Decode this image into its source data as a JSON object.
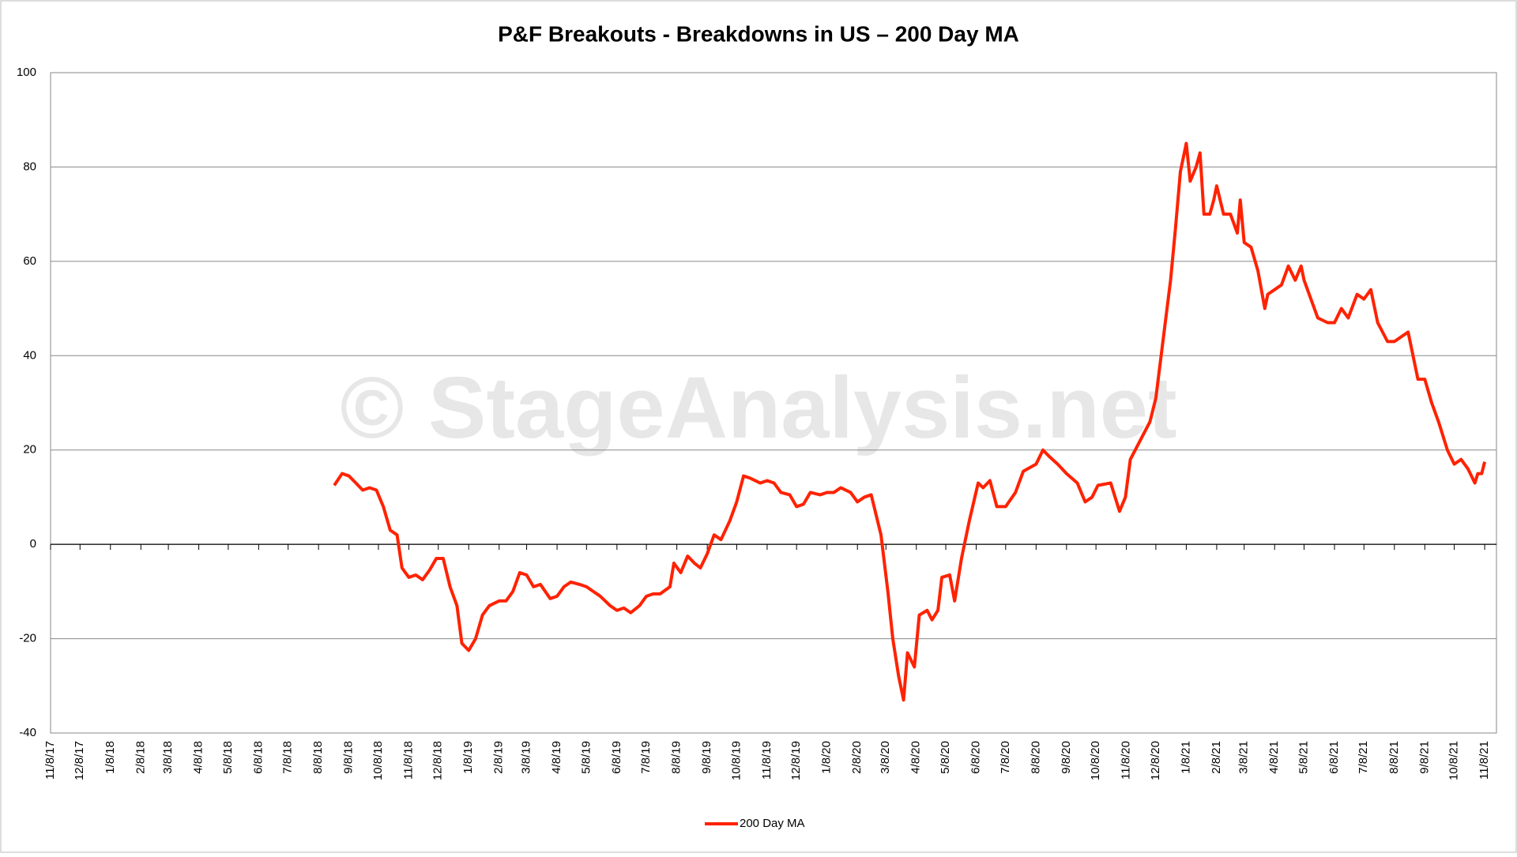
{
  "chart_data": {
    "type": "line",
    "title": "P&F Breakouts - Breakdowns in US – 200 Day MA",
    "watermark": "© StageAnalysis.net",
    "ylim": [
      -40,
      100
    ],
    "yticks": [
      -40,
      -20,
      0,
      20,
      40,
      60,
      80,
      100
    ],
    "xlim": [
      "11/8/17",
      "11/20/21"
    ],
    "xticks": [
      "11/8/17",
      "12/8/17",
      "1/8/18",
      "2/8/18",
      "3/8/18",
      "4/8/18",
      "5/8/18",
      "6/8/18",
      "7/8/18",
      "8/8/18",
      "9/8/18",
      "10/8/18",
      "11/8/18",
      "12/8/18",
      "1/8/19",
      "2/8/19",
      "3/8/19",
      "4/8/19",
      "5/8/19",
      "6/8/19",
      "7/8/19",
      "8/8/19",
      "9/8/19",
      "10/8/19",
      "11/8/19",
      "12/8/19",
      "1/8/20",
      "2/8/20",
      "3/8/20",
      "4/8/20",
      "5/8/20",
      "6/8/20",
      "7/8/20",
      "8/8/20",
      "9/8/20",
      "10/8/20",
      "11/8/20",
      "12/8/20",
      "1/8/21",
      "2/8/21",
      "3/8/21",
      "4/8/21",
      "5/8/21",
      "6/8/21",
      "7/8/21",
      "8/8/21",
      "9/8/21",
      "10/8/21",
      "11/8/21"
    ],
    "grid": true,
    "legend": "bottom",
    "x": [
      "8/24/18",
      "9/1/18",
      "9/8/18",
      "9/15/18",
      "9/22/18",
      "9/29/18",
      "10/6/18",
      "10/13/18",
      "10/20/18",
      "10/27/18",
      "11/1/18",
      "11/8/18",
      "11/15/18",
      "11/22/18",
      "11/29/18",
      "12/6/18",
      "12/13/18",
      "12/20/18",
      "12/27/18",
      "1/1/19",
      "1/8/19",
      "1/15/19",
      "1/22/19",
      "1/29/19",
      "2/8/19",
      "2/15/19",
      "2/22/19",
      "3/1/19",
      "3/8/19",
      "3/15/19",
      "3/22/19",
      "4/1/19",
      "4/8/19",
      "4/15/19",
      "4/22/19",
      "5/1/19",
      "5/8/19",
      "5/15/19",
      "5/22/19",
      "6/1/19",
      "6/8/19",
      "6/15/19",
      "6/22/19",
      "7/1/19",
      "7/8/19",
      "7/15/19",
      "7/22/19",
      "8/1/19",
      "8/5/19",
      "8/12/19",
      "8/19/19",
      "8/26/19",
      "9/1/19",
      "9/8/19",
      "9/15/19",
      "9/22/19",
      "10/1/19",
      "10/8/19",
      "10/15/19",
      "10/22/19",
      "11/1/19",
      "11/8/19",
      "11/15/19",
      "11/22/19",
      "12/1/19",
      "12/8/19",
      "12/15/19",
      "12/22/19",
      "1/1/20",
      "1/8/20",
      "1/15/20",
      "1/22/20",
      "2/1/20",
      "2/8/20",
      "2/15/20",
      "2/22/20",
      "3/3/20",
      "3/10/20",
      "3/15/20",
      "3/21/20",
      "3/26/20",
      "3/30/20",
      "4/6/20",
      "4/11/20",
      "4/19/20",
      "4/24/20",
      "4/30/20",
      "5/4/20",
      "5/12/20",
      "5/17/20",
      "5/24/20",
      "6/1/20",
      "6/10/20",
      "6/15/20",
      "6/22/20",
      "6/29/20",
      "7/8/20",
      "7/18/20",
      "7/26/20",
      "8/8/20",
      "8/15/20",
      "8/22/20",
      "8/30/20",
      "9/8/20",
      "9/19/20",
      "9/27/20",
      "10/4/20",
      "10/10/20",
      "10/23/20",
      "11/1/20",
      "11/7/20",
      "11/12/20",
      "11/22/20",
      "12/2/20",
      "12/8/20",
      "12/14/20",
      "12/23/20",
      "12/28/20",
      "1/2/21",
      "1/8/21",
      "1/12/21",
      "1/18/21",
      "1/22/21",
      "1/26/21",
      "2/1/21",
      "2/5/21",
      "2/8/21",
      "2/15/21",
      "2/22/21",
      "3/1/21",
      "3/4/21",
      "3/8/21",
      "3/15/21",
      "3/22/21",
      "3/29/21",
      "4/1/21",
      "4/8/21",
      "4/15/21",
      "4/22/21",
      "4/29/21",
      "5/5/21",
      "5/8/21",
      "5/15/21",
      "5/22/21",
      "6/1/21",
      "6/8/21",
      "6/15/21",
      "6/22/21",
      "7/1/21",
      "7/8/21",
      "7/15/21",
      "7/22/21",
      "8/1/21",
      "8/8/21",
      "8/15/21",
      "8/22/21",
      "9/1/21",
      "9/8/21",
      "9/15/21",
      "9/22/21",
      "10/1/21",
      "10/8/21",
      "10/15/21",
      "10/22/21",
      "10/29/21",
      "11/1/21",
      "11/5/21",
      "11/8/21"
    ],
    "series": [
      {
        "name": "200 Day MA",
        "color": "#ff2200",
        "values": [
          12.5,
          15,
          14.5,
          13,
          11.5,
          12,
          11.5,
          8,
          3,
          2,
          -5,
          -7,
          -6.5,
          -7.5,
          -5.5,
          -3,
          -3,
          -9,
          -13,
          -21,
          -22.5,
          -20,
          -15,
          -13,
          -12,
          -12,
          -10,
          -6,
          -6.5,
          -9,
          -8.5,
          -11.5,
          -11,
          -9,
          -8,
          -8.5,
          -9,
          -10,
          -11,
          -13,
          -14,
          -13.5,
          -14.5,
          -13,
          -11,
          -10.5,
          -10.5,
          -9,
          -4,
          -6,
          -2.5,
          -4,
          -5,
          -2,
          2,
          1,
          5,
          9,
          14.5,
          14,
          13,
          13.5,
          13,
          11,
          10.5,
          8,
          8.5,
          11,
          10.5,
          11,
          11,
          12,
          11,
          9,
          10,
          10.5,
          2,
          -10,
          -20,
          -28,
          -33,
          -23,
          -26,
          -15,
          -14,
          -16,
          -14,
          -7,
          -6.5,
          -12,
          -3,
          5,
          13,
          12,
          13.5,
          8,
          8,
          11,
          15.5,
          17,
          20,
          18.5,
          17,
          15,
          13,
          9,
          10,
          12.5,
          13,
          7,
          10,
          18,
          22,
          26,
          31,
          41,
          56,
          67,
          79,
          85,
          77,
          80,
          83,
          70,
          70,
          73,
          76,
          70,
          70,
          66,
          73,
          64,
          63,
          58,
          50,
          53,
          54,
          55,
          59,
          56,
          59,
          56,
          52,
          48,
          47,
          47,
          50,
          48,
          53,
          52,
          54,
          47,
          43,
          43,
          44,
          45,
          35,
          35,
          30,
          26,
          20,
          17,
          18,
          16,
          13,
          15,
          15,
          17.5
        ]
      }
    ]
  }
}
